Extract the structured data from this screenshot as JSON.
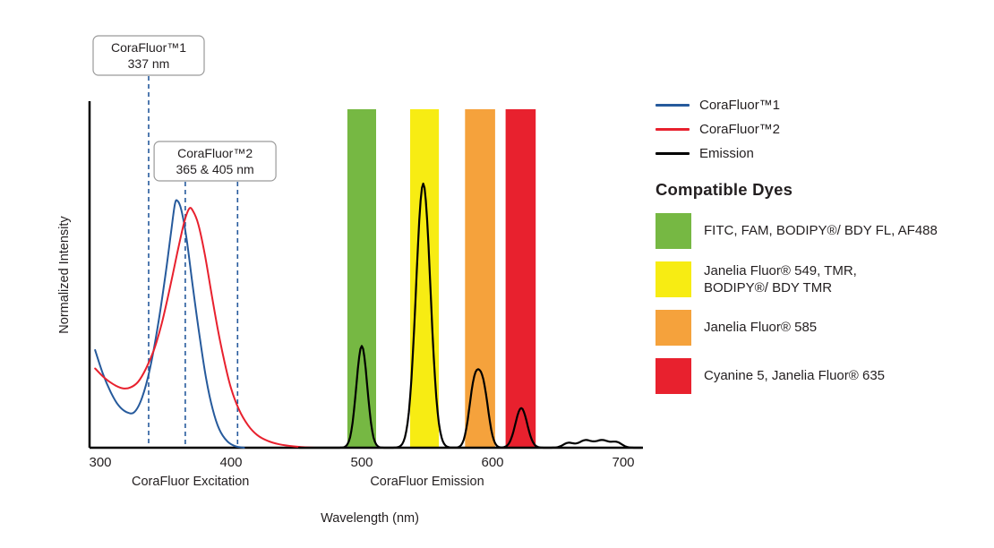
{
  "chart_data": {
    "type": "line",
    "title": "",
    "xlabel": "Wavelength (nm)",
    "ylabel": "Normalized Intensity",
    "x_ticks": [
      300,
      400,
      500,
      600,
      700
    ],
    "xlim": [
      296,
      715
    ],
    "ylim": [
      0,
      1.3
    ],
    "grid": false,
    "axis_color": "#000000",
    "text_color": "#231f20",
    "section_labels": [
      {
        "text": "CoraFluor Excitation",
        "nm": 369
      },
      {
        "text": "CoraFluor Emission",
        "nm": 550
      }
    ],
    "series": [
      {
        "name": "CoraFluor™1",
        "role": "excitation",
        "color": "#265a9c",
        "points": [
          [
            296,
            0.37
          ],
          [
            302,
            0.28
          ],
          [
            308,
            0.21
          ],
          [
            314,
            0.16
          ],
          [
            320,
            0.135
          ],
          [
            326,
            0.135
          ],
          [
            332,
            0.19
          ],
          [
            338,
            0.3
          ],
          [
            344,
            0.46
          ],
          [
            350,
            0.66
          ],
          [
            354,
            0.81
          ],
          [
            357,
            0.92
          ],
          [
            359,
            0.935
          ],
          [
            362,
            0.9
          ],
          [
            366,
            0.79
          ],
          [
            371,
            0.6
          ],
          [
            376,
            0.42
          ],
          [
            381,
            0.26
          ],
          [
            386,
            0.145
          ],
          [
            391,
            0.07
          ],
          [
            397,
            0.025
          ],
          [
            403,
            0.006
          ],
          [
            410,
            0
          ]
        ]
      },
      {
        "name": "CoraFluor™2",
        "role": "excitation",
        "color": "#e8212e",
        "points": [
          [
            296,
            0.3
          ],
          [
            303,
            0.265
          ],
          [
            310,
            0.24
          ],
          [
            317,
            0.225
          ],
          [
            323,
            0.228
          ],
          [
            329,
            0.25
          ],
          [
            335,
            0.3
          ],
          [
            341,
            0.37
          ],
          [
            347,
            0.47
          ],
          [
            353,
            0.6
          ],
          [
            359,
            0.74
          ],
          [
            364,
            0.85
          ],
          [
            368,
            0.905
          ],
          [
            371,
            0.895
          ],
          [
            375,
            0.845
          ],
          [
            380,
            0.73
          ],
          [
            385,
            0.585
          ],
          [
            390,
            0.445
          ],
          [
            395,
            0.325
          ],
          [
            400,
            0.225
          ],
          [
            406,
            0.145
          ],
          [
            413,
            0.085
          ],
          [
            420,
            0.048
          ],
          [
            428,
            0.026
          ],
          [
            437,
            0.013
          ],
          [
            448,
            0.005
          ],
          [
            460,
            0.001
          ],
          [
            470,
            0
          ]
        ]
      },
      {
        "name": "Emission",
        "role": "emission",
        "color": "#000000",
        "peaks": [
          {
            "nm": 500,
            "h": 0.385,
            "w": 4.2
          },
          {
            "nm": 547,
            "h": 1.0,
            "w": 5.5
          },
          {
            "nm": 586,
            "h": 0.225,
            "w": 4.0
          },
          {
            "nm": 593,
            "h": 0.21,
            "w": 4.0
          },
          {
            "nm": 622,
            "h": 0.15,
            "w": 4.5
          },
          {
            "nm": 658,
            "h": 0.018,
            "w": 4.0
          },
          {
            "nm": 671,
            "h": 0.028,
            "w": 5.0
          },
          {
            "nm": 684,
            "h": 0.028,
            "w": 5.0
          },
          {
            "nm": 695,
            "h": 0.02,
            "w": 4.0
          }
        ]
      }
    ],
    "bands": [
      {
        "name": "green",
        "color": "#76b843",
        "from": 489,
        "to": 511
      },
      {
        "name": "yellow",
        "color": "#f7ec13",
        "from": 537,
        "to": 559
      },
      {
        "name": "orange",
        "color": "#f5a23c",
        "from": 579,
        "to": 602
      },
      {
        "name": "red",
        "color": "#e8212e",
        "from": 610,
        "to": 633
      }
    ],
    "annotations": [
      {
        "title": "CoraFluor™1",
        "subtitle": "337 nm",
        "lines_nm": [
          337
        ],
        "line_color": "#265a9c"
      },
      {
        "title": "CoraFluor™2",
        "subtitle": "365 & 405 nm",
        "lines_nm": [
          365,
          405
        ],
        "line_color": "#265a9c"
      }
    ]
  },
  "legend": {
    "entries": [
      {
        "label": "CoraFluor™1",
        "color": "#265a9c"
      },
      {
        "label": "CoraFluor™2",
        "color": "#e8212e"
      },
      {
        "label": "Emission",
        "color": "#000000"
      }
    ],
    "compatible_dyes_title": "Compatible Dyes",
    "dyes": [
      {
        "color": "#76b843",
        "label": "FITC, FAM, BODIPY®/ BDY FL, AF488"
      },
      {
        "color": "#f7ec13",
        "label": "Janelia Fluor® 549, TMR,\nBODIPY®/ BDY TMR"
      },
      {
        "color": "#f5a23c",
        "label": "Janelia Fluor® 585"
      },
      {
        "color": "#e8212e",
        "label": "Cyanine 5, Janelia Fluor® 635"
      }
    ]
  }
}
